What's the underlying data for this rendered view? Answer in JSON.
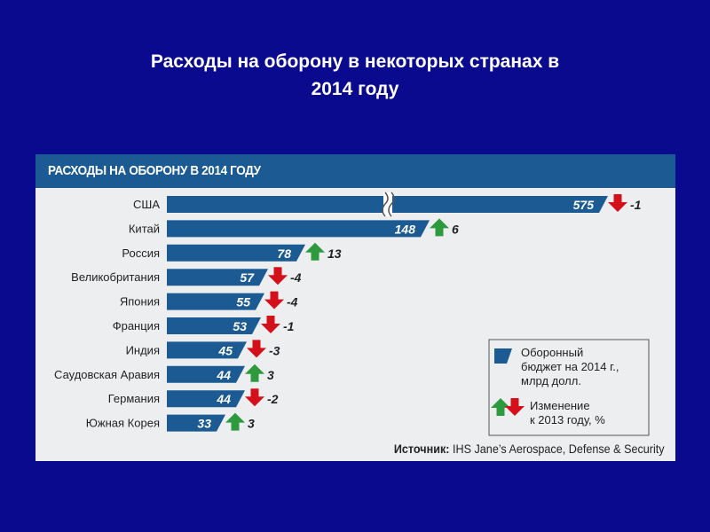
{
  "slide": {
    "title_line1": "Расходы на оборону в некоторых странах в",
    "title_line2": "2014 году"
  },
  "chart_data": {
    "type": "bar",
    "title": "РАСХОДЫ НА ОБОРОНУ В 2014 ГОДУ",
    "categories": [
      "США",
      "Китай",
      "Россия",
      "Великобритания",
      "Япония",
      "Франция",
      "Индия",
      "Саудовская Аравия",
      "Германия",
      "Южная Корея"
    ],
    "values": [
      575,
      148,
      78,
      57,
      55,
      53,
      45,
      44,
      44,
      33
    ],
    "changes": [
      "-1",
      "6",
      "13",
      "-4",
      "-4",
      "-1",
      "-3",
      "3",
      "-2",
      "3"
    ],
    "axis_break": true,
    "legend": {
      "placement": "bottom-right",
      "budget_label_lines": [
        "Оборонный",
        "бюджет на 2014 г.,",
        "млрд долл."
      ],
      "change_label_lines": [
        "Изменение",
        "к 2013 году, %"
      ]
    },
    "source_label": "Источник:",
    "source_text": " IHS Jane’s Aerospace, Defense & Security",
    "colors": {
      "bar": "#1b5a92",
      "up_arrow": "#2e9a3e",
      "down_arrow": "#d4111a",
      "background": "#0a0a8f",
      "panel": "#eceef0"
    }
  }
}
